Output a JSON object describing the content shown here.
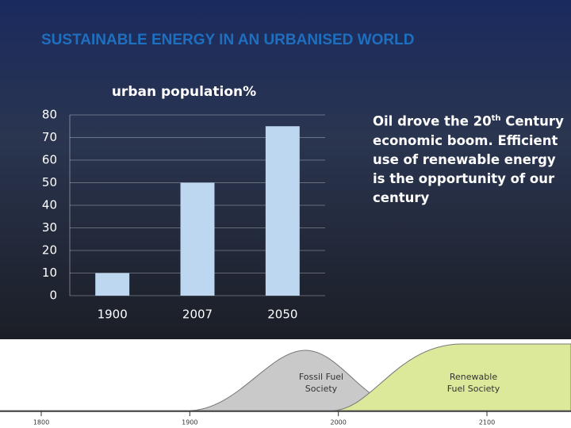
{
  "title": "SUSTAINABLE ENERGY IN AN URBANISED WORLD",
  "side_text": [
    "Oil drove the 20",
    "th",
    "Century economic boom. Efficient use of renewable energy is the opportunity of our century"
  ],
  "chart_data": {
    "type": "bar",
    "title": "urban population%",
    "categories": [
      1900,
      2007,
      2050
    ],
    "values": [
      10,
      50,
      75
    ],
    "color": "#bdd7f0",
    "ylim": [
      0,
      80
    ],
    "yticks": [
      0,
      10,
      20,
      30,
      40,
      50,
      60,
      70,
      80
    ],
    "grid": true
  },
  "timeline": {
    "curves": [
      [
        "Fossil Fuel",
        "Society"
      ],
      [
        "Renewable",
        "Fuel Society"
      ]
    ],
    "ticks": [
      1800,
      1900,
      2000,
      2100
    ]
  }
}
